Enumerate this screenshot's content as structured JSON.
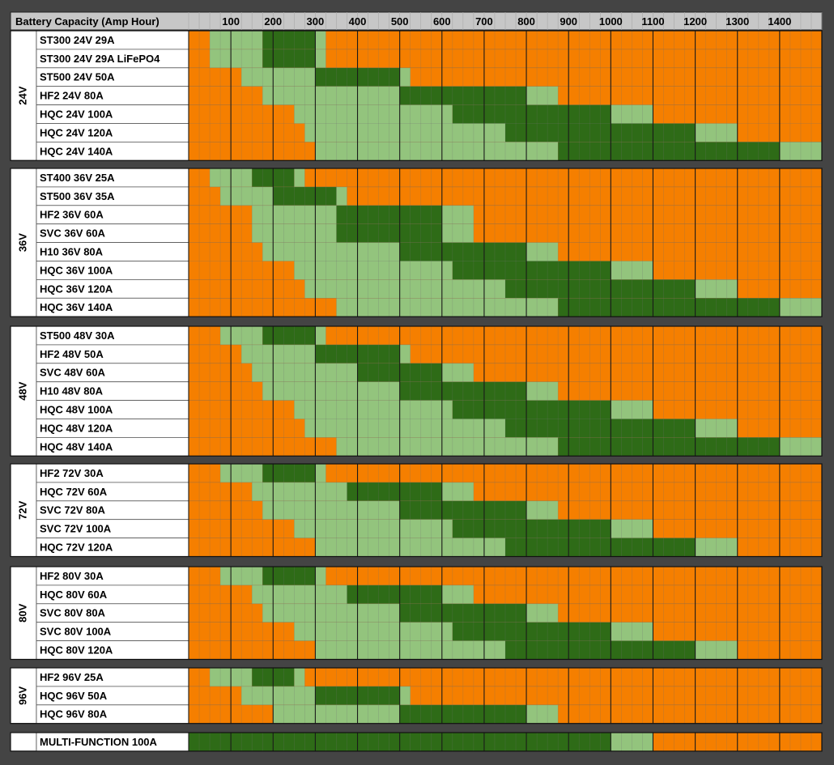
{
  "chart_data": {
    "type": "heatmap",
    "title": "Battery Capacity (Amp Hour)",
    "x_ticks": [
      "100",
      "200",
      "300",
      "400",
      "500",
      "600",
      "700",
      "800",
      "900",
      "1000",
      "1100",
      "1200",
      "1300",
      "1400"
    ],
    "x_range": [
      0,
      1500
    ],
    "cell_step": 25,
    "legend": [
      {
        "key": "orange",
        "color": "#f57f00"
      },
      {
        "key": "light",
        "color": "#93c47d"
      },
      {
        "key": "dark",
        "color": "#2e6b17"
      }
    ],
    "grid": true,
    "groups": [
      {
        "voltage": "24V",
        "rows": [
          {
            "label": "ST300 24V 29A",
            "light": [
              [
                50,
                175
              ],
              [
                300,
                325
              ]
            ],
            "dark": [
              [
                175,
                300
              ]
            ]
          },
          {
            "label": "ST300 24V 29A LiFePO4",
            "light": [
              [
                50,
                175
              ],
              [
                300,
                325
              ]
            ],
            "dark": [
              [
                175,
                300
              ]
            ]
          },
          {
            "label": "ST500 24V 50A",
            "light": [
              [
                125,
                300
              ],
              [
                500,
                525
              ]
            ],
            "dark": [
              [
                300,
                500
              ]
            ]
          },
          {
            "label": "HF2 24V 80A",
            "light": [
              [
                175,
                500
              ],
              [
                800,
                875
              ]
            ],
            "dark": [
              [
                500,
                800
              ]
            ]
          },
          {
            "label": "HQC 24V 100A",
            "light": [
              [
                250,
                625
              ],
              [
                1000,
                1100
              ]
            ],
            "dark": [
              [
                625,
                1000
              ]
            ]
          },
          {
            "label": "HQC 24V 120A",
            "light": [
              [
                275,
                750
              ],
              [
                1200,
                1300
              ]
            ],
            "dark": [
              [
                750,
                1200
              ]
            ]
          },
          {
            "label": "HQC 24V 140A",
            "light": [
              [
                300,
                875
              ],
              [
                1400,
                1500
              ]
            ],
            "dark": [
              [
                875,
                1400
              ]
            ]
          }
        ]
      },
      {
        "voltage": "36V",
        "rows": [
          {
            "label": "ST400 36V 25A",
            "light": [
              [
                50,
                150
              ],
              [
                250,
                275
              ]
            ],
            "dark": [
              [
                150,
                250
              ]
            ]
          },
          {
            "label": "ST500 36V 35A",
            "light": [
              [
                75,
                200
              ],
              [
                350,
                375
              ]
            ],
            "dark": [
              [
                200,
                350
              ]
            ]
          },
          {
            "label": "HF2 36V 60A",
            "light": [
              [
                150,
                350
              ],
              [
                600,
                675
              ]
            ],
            "dark": [
              [
                350,
                600
              ]
            ]
          },
          {
            "label": "SVC 36V 60A",
            "light": [
              [
                150,
                350
              ],
              [
                600,
                675
              ]
            ],
            "dark": [
              [
                350,
                600
              ]
            ]
          },
          {
            "label": "H10 36V 80A",
            "light": [
              [
                175,
                500
              ],
              [
                800,
                875
              ]
            ],
            "dark": [
              [
                500,
                800
              ]
            ]
          },
          {
            "label": "HQC 36V 100A",
            "light": [
              [
                250,
                625
              ],
              [
                1000,
                1100
              ]
            ],
            "dark": [
              [
                625,
                1000
              ]
            ]
          },
          {
            "label": "HQC 36V 120A",
            "light": [
              [
                275,
                750
              ],
              [
                1200,
                1300
              ]
            ],
            "dark": [
              [
                750,
                1200
              ]
            ]
          },
          {
            "label": "HQC 36V 140A",
            "light": [
              [
                350,
                875
              ],
              [
                1400,
                1500
              ]
            ],
            "dark": [
              [
                875,
                1400
              ]
            ]
          }
        ]
      },
      {
        "voltage": "48V",
        "rows": [
          {
            "label": "ST500 48V 30A",
            "light": [
              [
                75,
                175
              ],
              [
                300,
                325
              ]
            ],
            "dark": [
              [
                175,
                300
              ]
            ]
          },
          {
            "label": "HF2 48V 50A",
            "light": [
              [
                125,
                300
              ],
              [
                500,
                525
              ]
            ],
            "dark": [
              [
                300,
                500
              ]
            ]
          },
          {
            "label": "SVC 48V 60A",
            "light": [
              [
                150,
                400
              ],
              [
                600,
                675
              ]
            ],
            "dark": [
              [
                400,
                600
              ]
            ]
          },
          {
            "label": "H10 48V 80A",
            "light": [
              [
                175,
                500
              ],
              [
                800,
                875
              ]
            ],
            "dark": [
              [
                500,
                800
              ]
            ]
          },
          {
            "label": "HQC 48V 100A",
            "light": [
              [
                250,
                625
              ],
              [
                1000,
                1100
              ]
            ],
            "dark": [
              [
                625,
                1000
              ]
            ]
          },
          {
            "label": "HQC 48V 120A",
            "light": [
              [
                275,
                750
              ],
              [
                1200,
                1300
              ]
            ],
            "dark": [
              [
                750,
                1200
              ]
            ]
          },
          {
            "label": "HQC 48V 140A",
            "light": [
              [
                350,
                875
              ],
              [
                1400,
                1500
              ]
            ],
            "dark": [
              [
                875,
                1400
              ]
            ]
          }
        ]
      },
      {
        "voltage": "72V",
        "rows": [
          {
            "label": "HF2 72V 30A",
            "light": [
              [
                75,
                175
              ],
              [
                300,
                325
              ]
            ],
            "dark": [
              [
                175,
                300
              ]
            ]
          },
          {
            "label": "HQC 72V 60A",
            "light": [
              [
                150,
                375
              ],
              [
                600,
                675
              ]
            ],
            "dark": [
              [
                375,
                600
              ]
            ]
          },
          {
            "label": "SVC 72V 80A",
            "light": [
              [
                175,
                500
              ],
              [
                800,
                875
              ]
            ],
            "dark": [
              [
                500,
                800
              ]
            ]
          },
          {
            "label": "SVC 72V 100A",
            "light": [
              [
                250,
                625
              ],
              [
                1000,
                1100
              ]
            ],
            "dark": [
              [
                625,
                1000
              ]
            ]
          },
          {
            "label": "HQC 72V 120A",
            "light": [
              [
                300,
                750
              ],
              [
                1200,
                1300
              ]
            ],
            "dark": [
              [
                750,
                1200
              ]
            ]
          }
        ]
      },
      {
        "voltage": "80V",
        "rows": [
          {
            "label": "HF2 80V 30A",
            "light": [
              [
                75,
                175
              ],
              [
                300,
                325
              ]
            ],
            "dark": [
              [
                175,
                300
              ]
            ]
          },
          {
            "label": "HQC 80V 60A",
            "light": [
              [
                150,
                375
              ],
              [
                600,
                675
              ]
            ],
            "dark": [
              [
                375,
                600
              ]
            ]
          },
          {
            "label": "SVC 80V 80A",
            "light": [
              [
                175,
                500
              ],
              [
                800,
                875
              ]
            ],
            "dark": [
              [
                500,
                800
              ]
            ]
          },
          {
            "label": "SVC 80V 100A",
            "light": [
              [
                250,
                625
              ],
              [
                1000,
                1100
              ]
            ],
            "dark": [
              [
                625,
                1000
              ]
            ]
          },
          {
            "label": "HQC 80V 120A",
            "light": [
              [
                300,
                750
              ],
              [
                1200,
                1300
              ]
            ],
            "dark": [
              [
                750,
                1200
              ]
            ]
          }
        ]
      },
      {
        "voltage": "96V",
        "rows": [
          {
            "label": "HF2 96V 25A",
            "light": [
              [
                50,
                150
              ],
              [
                250,
                275
              ]
            ],
            "dark": [
              [
                150,
                250
              ]
            ]
          },
          {
            "label": "HQC 96V 50A",
            "light": [
              [
                125,
                300
              ],
              [
                500,
                525
              ]
            ],
            "dark": [
              [
                300,
                500
              ]
            ]
          },
          {
            "label": "HQC 96V 80A",
            "light": [
              [
                200,
                500
              ],
              [
                800,
                875
              ]
            ],
            "dark": [
              [
                500,
                800
              ]
            ]
          }
        ]
      },
      {
        "voltage": "",
        "rows": [
          {
            "label": "MULTI-FUNCTION 100A",
            "light": [
              [
                1000,
                1100
              ]
            ],
            "dark": [
              [
                0,
                1000
              ]
            ]
          }
        ]
      }
    ]
  }
}
